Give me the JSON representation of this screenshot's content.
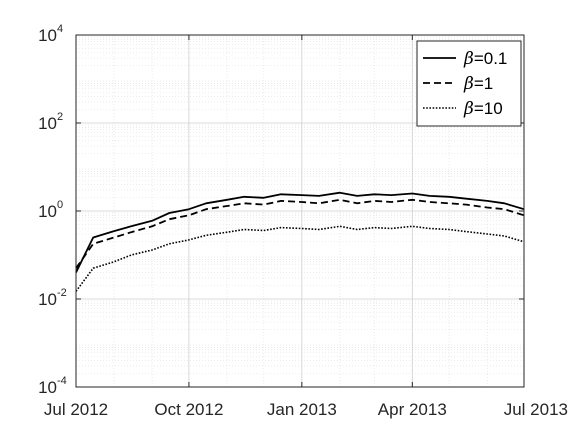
{
  "chart_data": {
    "type": "line",
    "x_axis": {
      "type": "date",
      "range": [
        "2012-07-01",
        "2013-07-01"
      ],
      "ticks": [
        {
          "date": "2012-07-01",
          "label": "Jul 2012"
        },
        {
          "date": "2012-10-01",
          "label": "Oct 2012"
        },
        {
          "date": "2013-01-01",
          "label": "Jan 2013"
        },
        {
          "date": "2013-04-01",
          "label": "Apr 2013"
        },
        {
          "date": "2013-07-01",
          "label": "Jul 2013"
        }
      ]
    },
    "y_axis": {
      "scale": "log",
      "range": [
        0.0001,
        10000
      ],
      "ticks": [
        {
          "value": 0.0001,
          "base": "10",
          "exp": "-4"
        },
        {
          "value": 0.01,
          "base": "10",
          "exp": "-2"
        },
        {
          "value": 1,
          "base": "10",
          "exp": "0"
        },
        {
          "value": 100,
          "base": "10",
          "exp": "2"
        },
        {
          "value": 10000,
          "base": "10",
          "exp": "4"
        }
      ]
    },
    "grid": true,
    "minor_grid": true,
    "legend_position": "top-right",
    "series": [
      {
        "name": "β=0.1",
        "legend_symbol": "β",
        "legend_value": "=0.1",
        "line_style": "solid",
        "color": "#000000",
        "x": [
          "2012-07-01",
          "2012-07-15",
          "2012-08-01",
          "2012-08-15",
          "2012-09-01",
          "2012-09-15",
          "2012-10-01",
          "2012-10-15",
          "2012-11-01",
          "2012-11-15",
          "2012-12-01",
          "2012-12-15",
          "2013-01-01",
          "2013-01-15",
          "2013-02-01",
          "2013-02-15",
          "2013-03-01",
          "2013-03-15",
          "2013-04-01",
          "2013-04-15",
          "2013-05-01",
          "2013-05-15",
          "2013-06-01",
          "2013-06-15",
          "2013-07-01"
        ],
        "y": [
          0.04,
          0.25,
          0.35,
          0.45,
          0.6,
          0.9,
          1.1,
          1.5,
          1.8,
          2.1,
          2.0,
          2.4,
          2.3,
          2.2,
          2.6,
          2.2,
          2.4,
          2.3,
          2.5,
          2.2,
          2.1,
          1.9,
          1.7,
          1.5,
          1.1
        ]
      },
      {
        "name": "β=1",
        "legend_symbol": "β",
        "legend_value": "=1",
        "line_style": "dashed",
        "color": "#000000",
        "x": [
          "2012-07-01",
          "2012-07-15",
          "2012-08-01",
          "2012-08-15",
          "2012-09-01",
          "2012-09-15",
          "2012-10-01",
          "2012-10-15",
          "2012-11-01",
          "2012-11-15",
          "2012-12-01",
          "2012-12-15",
          "2013-01-01",
          "2013-01-15",
          "2013-02-01",
          "2013-02-15",
          "2013-03-01",
          "2013-03-15",
          "2013-04-01",
          "2013-04-15",
          "2013-05-01",
          "2013-05-15",
          "2013-06-01",
          "2013-06-15",
          "2013-07-01"
        ],
        "y": [
          0.05,
          0.18,
          0.25,
          0.33,
          0.45,
          0.65,
          0.8,
          1.1,
          1.3,
          1.5,
          1.4,
          1.7,
          1.6,
          1.5,
          1.8,
          1.5,
          1.7,
          1.6,
          1.8,
          1.6,
          1.5,
          1.4,
          1.2,
          1.1,
          0.8
        ]
      },
      {
        "name": "β=10",
        "legend_symbol": "β",
        "legend_value": "=10",
        "line_style": "dotted",
        "color": "#000000",
        "x": [
          "2012-07-01",
          "2012-07-15",
          "2012-08-01",
          "2012-08-15",
          "2012-09-01",
          "2012-09-15",
          "2012-10-01",
          "2012-10-15",
          "2012-11-01",
          "2012-11-15",
          "2012-12-01",
          "2012-12-15",
          "2013-01-01",
          "2013-01-15",
          "2013-02-01",
          "2013-02-15",
          "2013-03-01",
          "2013-03-15",
          "2013-04-01",
          "2013-04-15",
          "2013-05-01",
          "2013-05-15",
          "2013-06-01",
          "2013-06-15",
          "2013-07-01"
        ],
        "y": [
          0.015,
          0.05,
          0.07,
          0.1,
          0.13,
          0.18,
          0.22,
          0.28,
          0.33,
          0.38,
          0.36,
          0.42,
          0.4,
          0.38,
          0.45,
          0.38,
          0.42,
          0.4,
          0.45,
          0.4,
          0.38,
          0.34,
          0.3,
          0.27,
          0.2
        ]
      }
    ]
  }
}
